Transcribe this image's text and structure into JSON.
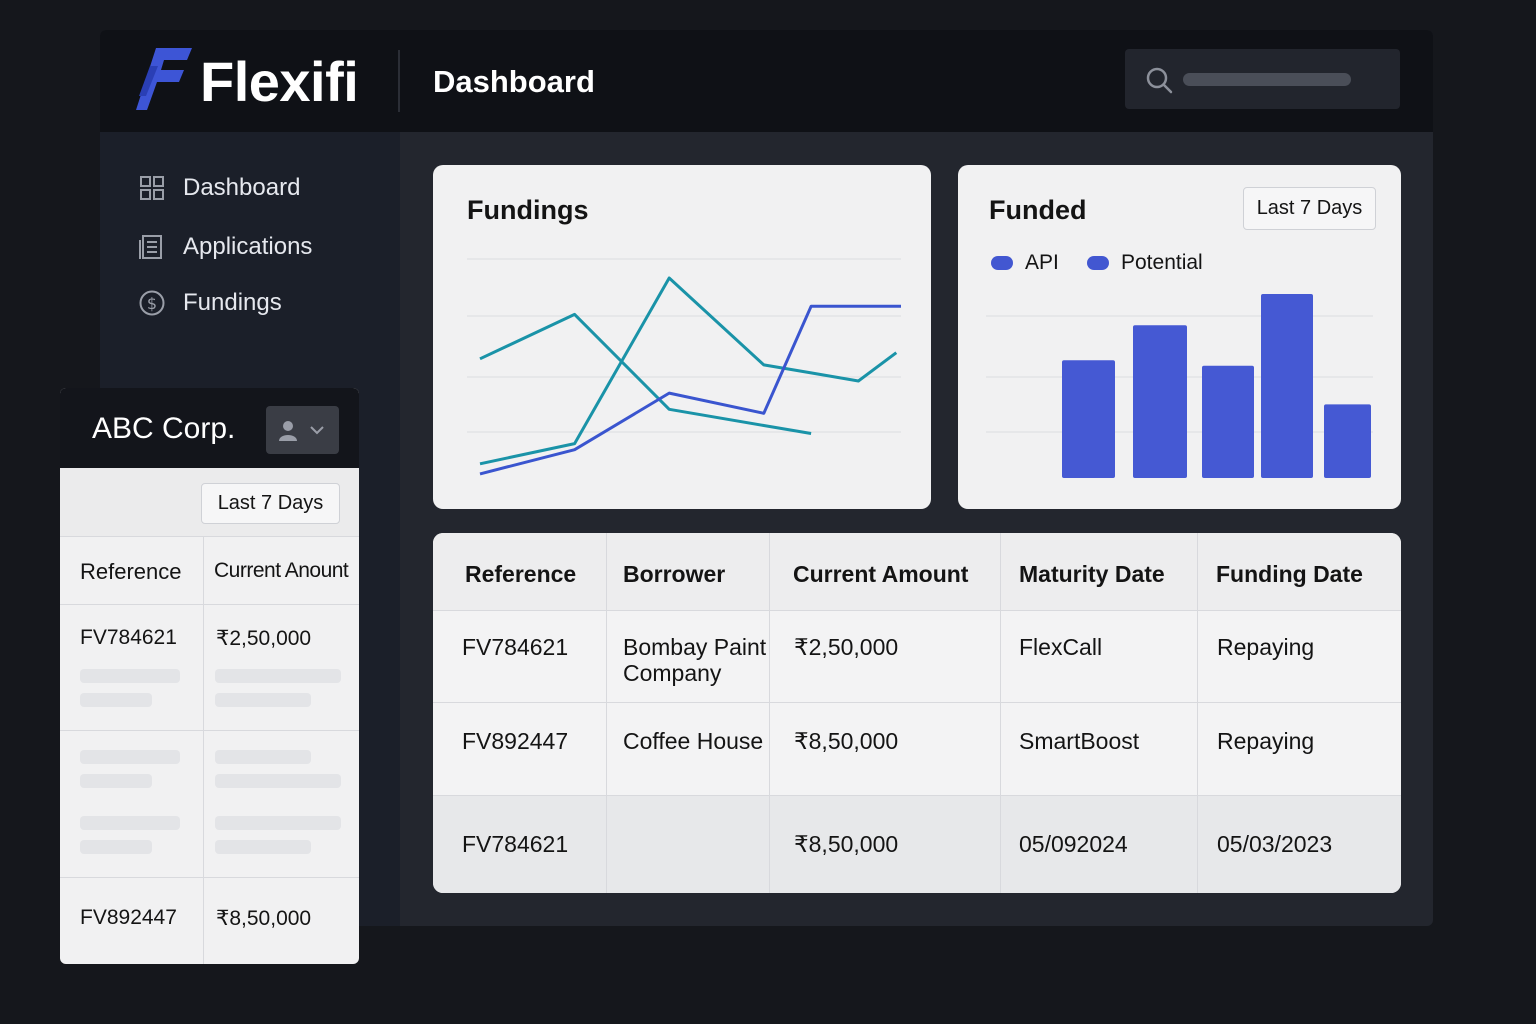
{
  "app": {
    "name": "Flexifi",
    "page_title": "Dashboard",
    "brand_color": "#3d55d6"
  },
  "search": {
    "icon": "search-icon",
    "placeholder": ""
  },
  "sidebar": {
    "items": [
      {
        "label": "Dashboard",
        "icon": "grid-icon"
      },
      {
        "label": "Applications",
        "icon": "document-icon"
      },
      {
        "label": "Fundings",
        "icon": "dollar-circle-icon"
      }
    ]
  },
  "fundings_card": {
    "title": "Fundings",
    "chart_data": {
      "type": "line",
      "series": [
        {
          "color": "#1a93a8",
          "values": [
            [
              0.0,
              0.6
            ],
            [
              1.0,
              0.82
            ],
            [
              2.0,
              0.35
            ],
            [
              3.0,
              0.27
            ],
            [
              3.5,
              0.23
            ]
          ]
        },
        {
          "color": "#1a93a8",
          "values": [
            [
              0.0,
              0.08
            ],
            [
              1.0,
              0.18
            ],
            [
              2.0,
              1.0
            ],
            [
              3.0,
              0.57
            ],
            [
              3.5,
              0.53
            ],
            [
              4.0,
              0.49
            ],
            [
              4.4,
              0.63
            ]
          ]
        },
        {
          "color": "#3a55cf",
          "values": [
            [
              0.0,
              0.03
            ],
            [
              1.0,
              0.15
            ],
            [
              2.0,
              0.43
            ],
            [
              3.0,
              0.33
            ],
            [
              3.5,
              0.86
            ],
            [
              4.45,
              0.86
            ]
          ]
        }
      ],
      "grid": true
    }
  },
  "funded_card": {
    "title": "Funded",
    "range_label": "Last 7 Days",
    "legend": [
      {
        "label": "API",
        "color": "#4257d1"
      },
      {
        "label": "Potential",
        "color": "#4257d1"
      }
    ],
    "chart_data": {
      "type": "bar",
      "values": [
        0.64,
        0.83,
        0.61,
        1.0,
        0.4
      ],
      "color": "#4559d3",
      "grid": true
    }
  },
  "main_table": {
    "columns": [
      "Reference",
      "Borrower",
      "Current Amount",
      "Maturity Date",
      "Funding Date"
    ],
    "rows": [
      {
        "reference": "FV784621",
        "borrower_line1": "Bombay Paint",
        "borrower_line2": "Company",
        "amount": "₹2,50,000",
        "maturity": "FlexCall",
        "funding": "Repaying"
      },
      {
        "reference": "FV892447",
        "borrower_line1": "Coffee House",
        "borrower_line2": "",
        "amount": "₹8,50,000",
        "maturity": "SmartBoost",
        "funding": "Repaying"
      },
      {
        "reference": "FV784621",
        "borrower_line1": "",
        "borrower_line2": "",
        "amount": "₹8,50,000",
        "maturity": "05/092024",
        "funding": "05/03/2023"
      }
    ]
  },
  "side_panel": {
    "company": "ABC Corp.",
    "user_icon": "user-icon",
    "range_label": "Last 7 Days",
    "columns": [
      "Reference",
      "Current Anount"
    ],
    "rows": [
      {
        "reference": "FV784621",
        "amount": "₹2,50,000"
      },
      {
        "reference": "FV892447",
        "amount": "₹8,50,000"
      }
    ]
  }
}
